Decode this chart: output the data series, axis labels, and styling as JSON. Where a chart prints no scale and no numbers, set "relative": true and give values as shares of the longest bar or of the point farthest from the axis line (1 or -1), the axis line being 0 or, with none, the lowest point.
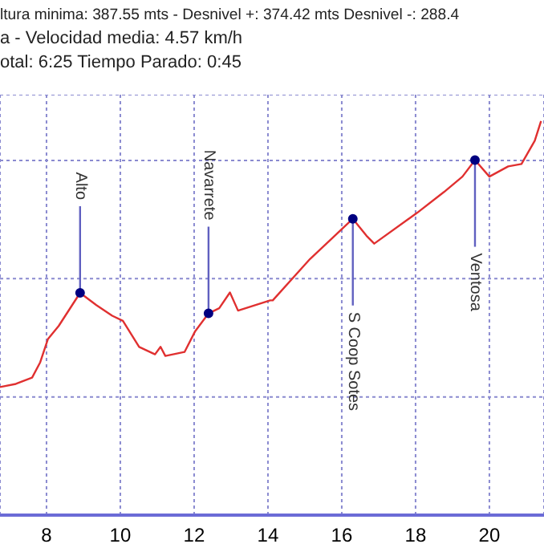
{
  "chart_data": {
    "type": "line",
    "title": "ltura minima: 387.55 mts - Desnivel +: 374.42 mts Desnivel -: 288.4",
    "subtitle": "a - Velocidad media: 4.57 km/h",
    "annotations": [
      "otal: 6:25  Tiempo Parado: 0:45",
      {
        "text": "Alto",
        "x": 8.91,
        "y": 0.564
      },
      {
        "text": "Navarrete",
        "x": 12.39,
        "y": 0.512
      },
      {
        "text": "S Coop Sotes",
        "x": 16.3,
        "y": 0.752
      },
      {
        "text": "Ventosa",
        "x": 19.61,
        "y": 0.901
      }
    ],
    "relative": true,
    "xlim": [
      6.74,
      21.48
    ],
    "xticks": [
      8,
      10,
      12,
      14,
      16,
      18,
      20
    ],
    "grid": true,
    "marker": "none",
    "line_style": "solid",
    "series": [
      {
        "color": "#e03030",
        "x": [
          6.74,
          7.17,
          7.61,
          7.83,
          8.04,
          8.33,
          8.91,
          9.35,
          9.78,
          10.07,
          10.51,
          10.94,
          11.09,
          11.22,
          11.74,
          12.03,
          12.39,
          12.68,
          12.97,
          13.19,
          14.06,
          14.13,
          15.14,
          16.3,
          16.67,
          16.88,
          18.04,
          18.77,
          19.27,
          19.61,
          20.0,
          20.51,
          20.87,
          21.23,
          21.4
        ],
        "values": [
          0.325,
          0.333,
          0.349,
          0.388,
          0.447,
          0.48,
          0.564,
          0.533,
          0.506,
          0.493,
          0.427,
          0.408,
          0.427,
          0.404,
          0.414,
          0.467,
          0.512,
          0.525,
          0.565,
          0.519,
          0.545,
          0.545,
          0.65,
          0.752,
          0.709,
          0.689,
          0.767,
          0.82,
          0.859,
          0.901,
          0.859,
          0.885,
          0.891,
          0.95,
          1.0
        ]
      }
    ]
  }
}
